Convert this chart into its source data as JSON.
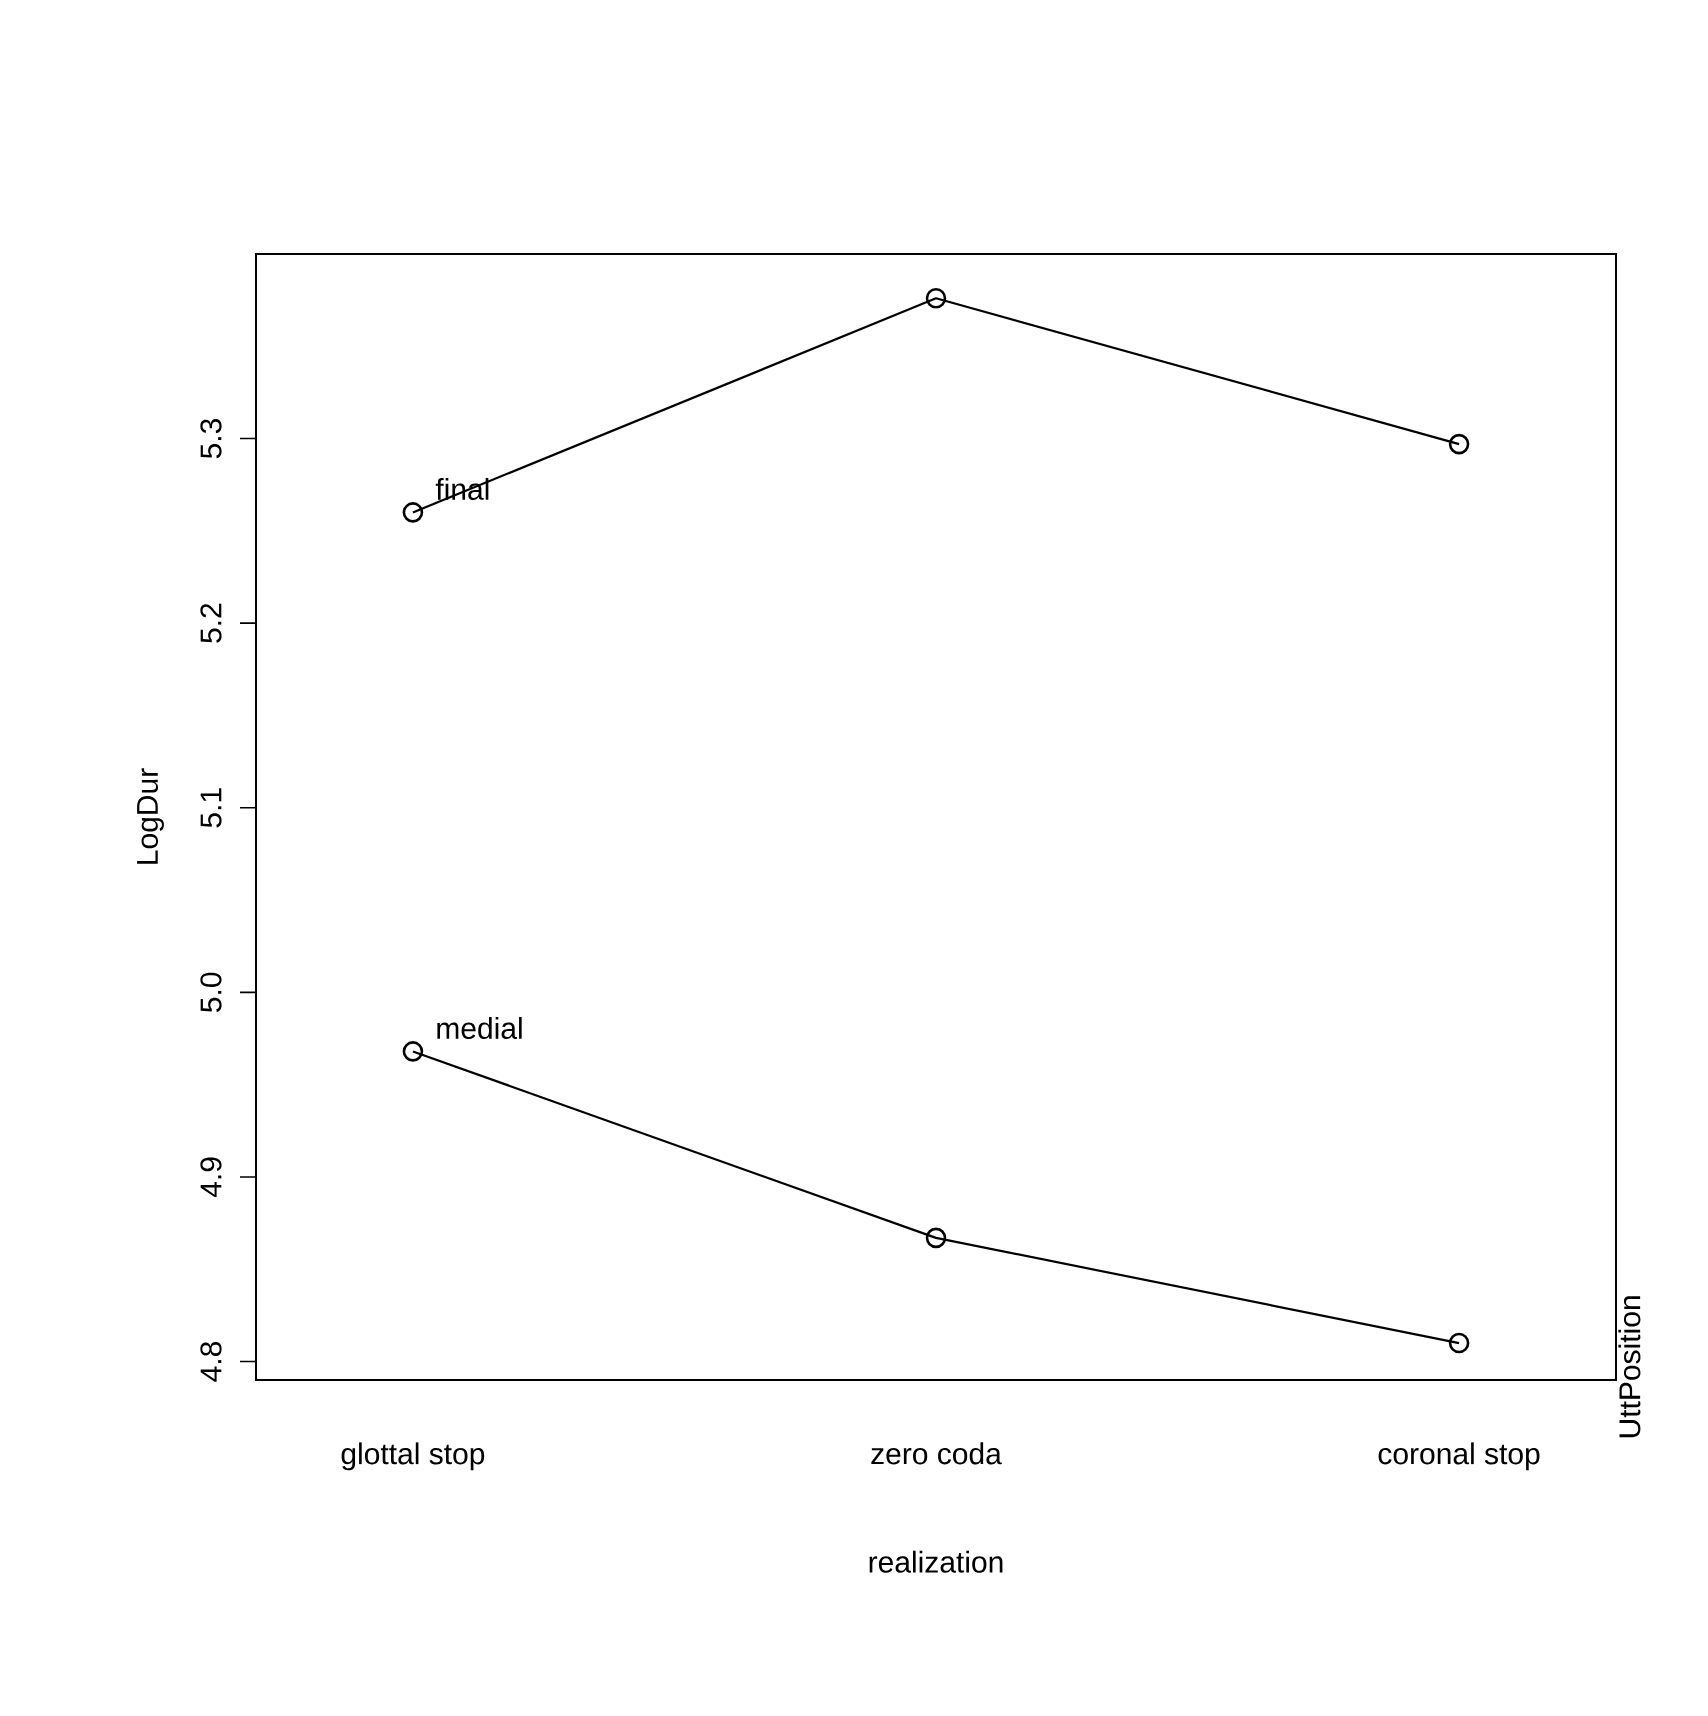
{
  "chart_data": {
    "type": "line",
    "xlabel": "realization",
    "ylabel": "LogDur",
    "legend_title": "UttPosition",
    "categories": [
      "glottal stop",
      "zero coda",
      "coronal stop"
    ],
    "ylim": [
      4.79,
      5.4
    ],
    "yticks": [
      4.8,
      4.9,
      {
        "value": 5,
        "label": "5.0"
      },
      5.1,
      5.2,
      5.3
    ],
    "series": [
      {
        "name": "final",
        "color": "#000000",
        "values": [
          5.26,
          5.376,
          5.297
        ]
      },
      {
        "name": "medial",
        "color": "#000000",
        "values": [
          4.968,
          4.867,
          4.81
        ]
      }
    ],
    "marker": "circle",
    "line_style": "solid",
    "grid": false
  }
}
